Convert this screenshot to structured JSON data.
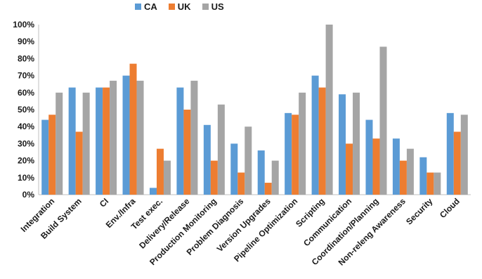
{
  "chart_data": {
    "type": "bar",
    "categories": [
      "Integration",
      "Build System",
      "CI",
      "Env./Infra",
      "Test exec.",
      "Delivery/Release",
      "Production Monitoring",
      "Problem Diagnosis",
      "Version Upgrades",
      "Pipeline Optimization",
      "Scripting",
      "Communication",
      "Coordination/Planning",
      "Non-releng Awareness",
      "Security",
      "Cloud"
    ],
    "series": [
      {
        "name": "CA",
        "color": "#5B9BD5",
        "values": [
          44,
          63,
          63,
          70,
          4,
          63,
          41,
          30,
          26,
          48,
          70,
          59,
          44,
          33,
          22,
          48
        ]
      },
      {
        "name": "UK",
        "color": "#ED7D31",
        "values": [
          47,
          37,
          63,
          77,
          27,
          50,
          20,
          13,
          7,
          47,
          63,
          30,
          33,
          20,
          13,
          37
        ]
      },
      {
        "name": "US",
        "color": "#A5A5A5",
        "values": [
          60,
          60,
          67,
          67,
          20,
          67,
          53,
          40,
          20,
          60,
          100,
          60,
          87,
          27,
          13,
          47
        ]
      }
    ],
    "yticks": [
      "0%",
      "10%",
      "20%",
      "30%",
      "40%",
      "50%",
      "60%",
      "70%",
      "80%",
      "90%",
      "100%"
    ],
    "ylim": [
      0,
      100
    ],
    "grid": false,
    "legend_position": "top"
  }
}
